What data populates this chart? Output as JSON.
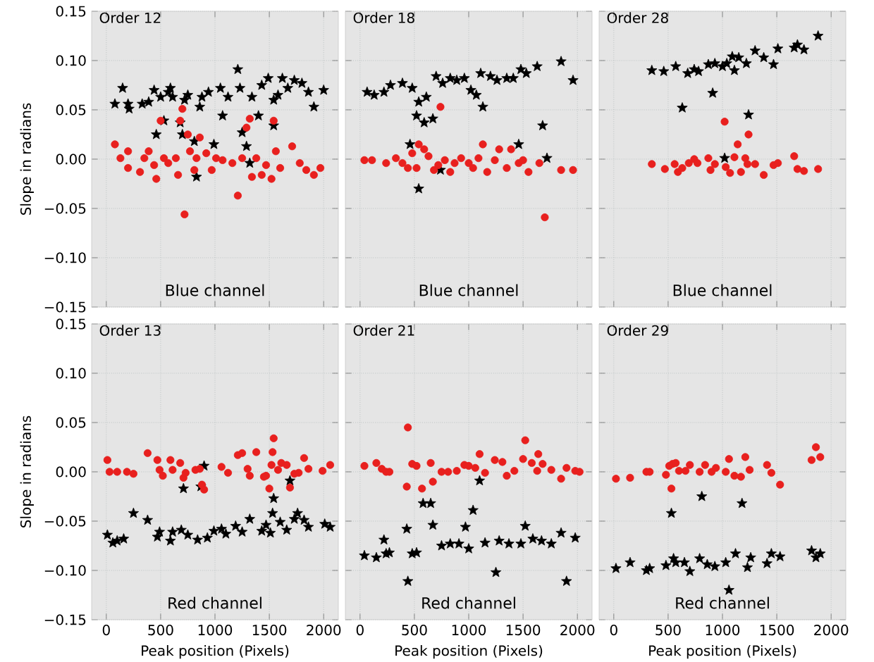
{
  "chart_data": [
    {
      "type": "scatter",
      "title": "Order 12",
      "ylabel": "Slope in radians",
      "annotations": [
        "Blue channel"
      ],
      "xlim": [
        -135,
        2135
      ],
      "xticks": [
        0,
        500,
        1000,
        1500,
        2000
      ],
      "ylim": [
        -0.15,
        0.15
      ],
      "yticks": [
        {
          "value": -0.15,
          "label": "−0.15"
        },
        {
          "value": -0.1,
          "label": "−0.10"
        },
        {
          "value": -0.05,
          "label": "−0.05"
        },
        {
          "value": 0,
          "label": "0.00"
        },
        {
          "value": 0.05,
          "label": "0.05"
        },
        {
          "value": 0.1,
          "label": "0.10"
        },
        {
          "value": 0.15,
          "label": "0.15"
        }
      ],
      "grid": true,
      "tick_labels": "y",
      "series": [
        {
          "color": "#000000",
          "marker": "star",
          "x": [
            79,
            150,
            200,
            210,
            330,
            390,
            440,
            460,
            500,
            530,
            570,
            590,
            610,
            680,
            700,
            720,
            750,
            810,
            830,
            860,
            880,
            940,
            990,
            1050,
            1070,
            1120,
            1210,
            1230,
            1250,
            1290,
            1320,
            1340,
            1400,
            1430,
            1490,
            1540,
            1540,
            1580,
            1620,
            1670,
            1730,
            1800,
            1860,
            1910,
            2000
          ],
          "values": [
            0.056,
            0.072,
            0.056,
            0.051,
            0.056,
            0.058,
            0.07,
            0.025,
            0.063,
            0.039,
            0.068,
            0.072,
            0.063,
            0.037,
            0.025,
            0.06,
            0.065,
            0.018,
            -0.018,
            0.053,
            0.063,
            0.068,
            0.015,
            0.072,
            0.044,
            0.063,
            0.091,
            0.072,
            0.027,
            0.013,
            -0.004,
            0.063,
            0.044,
            0.075,
            0.082,
            0.034,
            0.06,
            0.065,
            0.082,
            0.072,
            0.08,
            0.077,
            0.068,
            0.053,
            0.07
          ]
        },
        {
          "color": "#e8201e",
          "marker": "circle",
          "x": [
            79,
            130,
            200,
            200,
            310,
            350,
            390,
            440,
            460,
            500,
            530,
            570,
            640,
            660,
            680,
            700,
            720,
            750,
            770,
            810,
            830,
            860,
            920,
            970,
            1010,
            1070,
            1160,
            1210,
            1250,
            1290,
            1320,
            1340,
            1380,
            1430,
            1470,
            1520,
            1540,
            1560,
            1600,
            1710,
            1780,
            1840,
            1910,
            1970
          ],
          "values": [
            0.015,
            0.001,
            0.008,
            -0.009,
            -0.013,
            0.001,
            0.008,
            -0.006,
            -0.02,
            0.039,
            0.001,
            -0.004,
            0.001,
            -0.016,
            0.039,
            0.051,
            -0.056,
            0.025,
            0.008,
            -0.011,
            0.001,
            0.022,
            0.006,
            -0.011,
            0.001,
            -0.001,
            -0.004,
            -0.037,
            0.001,
            0.032,
            0.041,
            -0.018,
            0.001,
            -0.016,
            -0.006,
            -0.02,
            0.039,
            0.008,
            -0.009,
            0.013,
            -0.004,
            -0.011,
            -0.016,
            -0.009
          ]
        }
      ]
    },
    {
      "type": "scatter",
      "title": "Order 18",
      "annotations": [
        "Blue channel"
      ],
      "xlim": [
        -135,
        2135
      ],
      "xticks": [
        0,
        500,
        1000,
        1500,
        2000
      ],
      "ylim": [
        -0.15,
        0.15
      ],
      "yticks": [
        -0.15,
        -0.1,
        -0.05,
        0,
        0.05,
        0.1,
        0.15
      ],
      "grid": true,
      "tick_labels": false,
      "series": [
        {
          "color": "#000000",
          "marker": "star",
          "x": [
            65,
            130,
            220,
            280,
            390,
            480,
            460,
            520,
            540,
            590,
            610,
            670,
            700,
            760,
            830,
            890,
            960,
            1020,
            1070,
            1110,
            1130,
            1200,
            1260,
            1350,
            1410,
            1480,
            1530,
            740,
            540,
            1460,
            1630,
            1680,
            1720,
            1850,
            1960
          ],
          "values": [
            0.068,
            0.065,
            0.068,
            0.075,
            0.077,
            0.072,
            0.015,
            0.044,
            0.058,
            0.037,
            0.063,
            0.041,
            0.084,
            0.077,
            0.082,
            0.08,
            0.082,
            0.07,
            0.065,
            0.087,
            0.053,
            0.084,
            0.08,
            0.082,
            0.082,
            0.091,
            0.087,
            -0.011,
            -0.03,
            0.015,
            0.094,
            0.034,
            0.001,
            0.099,
            0.08
          ]
        },
        {
          "color": "#e8201e",
          "marker": "circle",
          "x": [
            40,
            110,
            240,
            330,
            390,
            440,
            480,
            520,
            540,
            590,
            630,
            680,
            720,
            740,
            780,
            830,
            870,
            930,
            1000,
            1040,
            1090,
            1130,
            1170,
            1240,
            1280,
            1350,
            1390,
            1460,
            1500,
            1550,
            1650,
            1700,
            1850,
            1960
          ],
          "values": [
            -0.001,
            -0.001,
            -0.004,
            0.001,
            -0.004,
            -0.009,
            0.006,
            -0.009,
            0.015,
            0.01,
            0.003,
            -0.011,
            -0.006,
            0.053,
            -0.001,
            -0.013,
            -0.004,
            0.001,
            -0.004,
            -0.009,
            0.001,
            0.015,
            -0.013,
            -0.001,
            0.01,
            -0.009,
            0.01,
            -0.004,
            -0.001,
            -0.013,
            -0.004,
            -0.059,
            -0.011,
            -0.011
          ]
        }
      ]
    },
    {
      "type": "scatter",
      "title": "Order 28",
      "annotations": [
        "Blue channel"
      ],
      "xlim": [
        -135,
        2135
      ],
      "xticks": [
        0,
        500,
        1000,
        1500,
        2000
      ],
      "ylim": [
        -0.15,
        0.15
      ],
      "yticks": [
        -0.15,
        -0.1,
        -0.05,
        0,
        0.05,
        0.1,
        0.15
      ],
      "grid": true,
      "tick_labels": false,
      "series": [
        {
          "color": "#000000",
          "marker": "star",
          "x": [
            350,
            460,
            570,
            630,
            680,
            740,
            780,
            870,
            910,
            930,
            1000,
            1020,
            1040,
            1090,
            1110,
            1150,
            1220,
            1240,
            1300,
            1380,
            1470,
            1510,
            1660,
            1690,
            1750,
            1880
          ],
          "values": [
            0.09,
            0.089,
            0.094,
            0.052,
            0.087,
            0.091,
            0.089,
            0.096,
            0.067,
            0.097,
            0.094,
            0.001,
            0.097,
            0.104,
            0.09,
            0.103,
            0.097,
            0.045,
            0.11,
            0.103,
            0.096,
            0.112,
            0.113,
            0.116,
            0.111,
            0.125
          ]
        },
        {
          "color": "#e8201e",
          "marker": "circle",
          "x": [
            350,
            470,
            560,
            590,
            630,
            690,
            740,
            770,
            870,
            890,
            930,
            1020,
            1030,
            1070,
            1110,
            1140,
            1170,
            1210,
            1230,
            1240,
            1300,
            1380,
            1470,
            1510,
            1660,
            1690,
            1750,
            1880
          ],
          "values": [
            -0.005,
            -0.01,
            -0.005,
            -0.013,
            -0.009,
            -0.004,
            0,
            -0.004,
            0.001,
            -0.011,
            -0.005,
            0.038,
            -0.008,
            -0.014,
            0.002,
            0.015,
            -0.013,
            0.001,
            -0.005,
            0.025,
            -0.005,
            -0.016,
            -0.006,
            -0.004,
            0.003,
            -0.01,
            -0.012,
            -0.01
          ]
        }
      ]
    },
    {
      "type": "scatter",
      "title": "Order 13",
      "xlabel": "Peak position (Pixels)",
      "ylabel": "Slope in radians",
      "annotations": [
        "Red channel"
      ],
      "xlim": [
        -135,
        2135
      ],
      "xticks": [
        0,
        500,
        1000,
        1500,
        2000
      ],
      "ylim": [
        -0.15,
        0.15
      ],
      "yticks": [
        {
          "value": -0.15,
          "label": "−0.15"
        },
        {
          "value": -0.1,
          "label": "−0.10"
        },
        {
          "value": -0.05,
          "label": "−0.05"
        },
        {
          "value": 0,
          "label": "0.00"
        },
        {
          "value": 0.05,
          "label": "0.05"
        },
        {
          "value": 0.1,
          "label": "0.10"
        },
        {
          "value": 0.15,
          "label": "0.15"
        }
      ],
      "grid": true,
      "series": [
        {
          "color": "#000000",
          "marker": "star",
          "x": [
            10,
            60,
            100,
            160,
            250,
            380,
            470,
            490,
            590,
            610,
            690,
            710,
            750,
            840,
            870,
            900,
            930,
            990,
            1060,
            1100,
            1190,
            1250,
            1320,
            1430,
            1470,
            1510,
            1530,
            1540,
            1600,
            1660,
            1690,
            1730,
            1760,
            1820,
            1860,
            2010,
            2060
          ],
          "values": [
            -0.064,
            -0.072,
            -0.07,
            -0.068,
            -0.042,
            -0.049,
            -0.066,
            -0.061,
            -0.07,
            -0.061,
            -0.059,
            -0.017,
            -0.064,
            -0.069,
            -0.015,
            0.006,
            -0.067,
            -0.06,
            -0.058,
            -0.063,
            -0.055,
            -0.061,
            -0.048,
            -0.06,
            -0.054,
            -0.062,
            -0.042,
            -0.027,
            -0.051,
            -0.059,
            -0.009,
            -0.048,
            -0.042,
            -0.049,
            -0.056,
            -0.053,
            -0.056
          ]
        },
        {
          "color": "#e8201e",
          "marker": "circle",
          "x": [
            10,
            30,
            100,
            190,
            250,
            380,
            470,
            490,
            520,
            590,
            610,
            680,
            710,
            730,
            820,
            860,
            880,
            900,
            1060,
            1120,
            1210,
            1250,
            1300,
            1320,
            1380,
            1450,
            1470,
            1500,
            1520,
            1530,
            1540,
            1580,
            1610,
            1660,
            1690,
            1730,
            1770,
            1820,
            1860,
            1990,
            2060
          ],
          "values": [
            0.012,
            0,
            0,
            0,
            -0.002,
            0.019,
            0.012,
            0.002,
            -0.004,
            0.012,
            0.002,
            0.009,
            -0.006,
            -0.001,
            0.002,
            0.003,
            -0.013,
            -0.018,
            0.005,
            -0.001,
            0.017,
            0.019,
            0.003,
            -0.004,
            0.02,
            -0.005,
            -0.004,
            -0.017,
            0.007,
            0.02,
            0.034,
            0.002,
            0.009,
            0.007,
            -0.016,
            -0.002,
            -0.001,
            0.014,
            0.003,
            0.001,
            0.007
          ]
        }
      ]
    },
    {
      "type": "scatter",
      "title": "Order 21",
      "xlabel": "Peak position (Pixels)",
      "annotations": [
        "Red channel"
      ],
      "xlim": [
        -135,
        2135
      ],
      "xticks": [
        0,
        500,
        1000,
        1500,
        2000
      ],
      "ylim": [
        -0.15,
        0.15
      ],
      "yticks": [
        -0.15,
        -0.1,
        -0.05,
        0,
        0.05,
        0.1,
        0.15
      ],
      "grid": true,
      "tick_labels": "x",
      "series": [
        {
          "color": "#000000",
          "marker": "star",
          "x": [
            40,
            150,
            220,
            240,
            270,
            430,
            440,
            480,
            520,
            580,
            650,
            670,
            750,
            830,
            910,
            970,
            1000,
            1040,
            1100,
            1150,
            1250,
            1280,
            1370,
            1480,
            1520,
            1590,
            1670,
            1760,
            1850,
            1900,
            1980
          ],
          "values": [
            -0.085,
            -0.087,
            -0.069,
            -0.083,
            -0.082,
            -0.058,
            -0.111,
            -0.083,
            -0.082,
            -0.032,
            -0.032,
            -0.054,
            -0.075,
            -0.073,
            -0.073,
            -0.056,
            -0.078,
            -0.039,
            -0.009,
            -0.072,
            -0.102,
            -0.07,
            -0.073,
            -0.073,
            -0.055,
            -0.068,
            -0.07,
            -0.073,
            -0.062,
            -0.111,
            -0.067
          ]
        },
        {
          "color": "#e8201e",
          "marker": "circle",
          "x": [
            40,
            150,
            200,
            240,
            270,
            430,
            440,
            480,
            520,
            570,
            650,
            670,
            750,
            810,
            890,
            960,
            1000,
            1060,
            1100,
            1150,
            1240,
            1310,
            1350,
            1420,
            1500,
            1520,
            1580,
            1630,
            1640,
            1680,
            1760,
            1850,
            1900,
            1980,
            2020
          ],
          "values": [
            0.006,
            0.009,
            0.003,
            0,
            0,
            -0.015,
            0.045,
            0.008,
            0.006,
            -0.017,
            0.009,
            -0.01,
            0,
            0,
            0.001,
            0.007,
            0.006,
            0.004,
            0.018,
            -0.001,
            0.012,
            0.01,
            -0.004,
            0.001,
            0.013,
            0.032,
            0.009,
            0.001,
            0.018,
            0.008,
            0.002,
            -0.007,
            0.004,
            0.001,
            0
          ]
        }
      ]
    },
    {
      "type": "scatter",
      "title": "Order 29",
      "xlabel": "Peak position (Pixels)",
      "annotations": [
        "Red channel"
      ],
      "xlim": [
        -135,
        2135
      ],
      "xticks": [
        0,
        500,
        1000,
        1500,
        2000
      ],
      "ylim": [
        -0.15,
        0.15
      ],
      "yticks": [
        -0.15,
        -0.1,
        -0.05,
        0,
        0.05,
        0.1,
        0.15
      ],
      "grid": true,
      "tick_labels": "x",
      "series": [
        {
          "color": "#000000",
          "marker": "star",
          "x": [
            20,
            150,
            300,
            330,
            480,
            530,
            550,
            570,
            650,
            700,
            790,
            810,
            860,
            930,
            1030,
            1060,
            1120,
            1180,
            1230,
            1260,
            1410,
            1450,
            1530,
            1820,
            1860,
            1900
          ],
          "values": [
            -0.098,
            -0.092,
            -0.1,
            -0.098,
            -0.095,
            -0.042,
            -0.088,
            -0.092,
            -0.092,
            -0.101,
            -0.088,
            -0.025,
            -0.094,
            -0.096,
            -0.092,
            -0.12,
            -0.083,
            -0.032,
            -0.097,
            -0.087,
            -0.093,
            -0.083,
            -0.086,
            -0.08,
            -0.087,
            -0.083
          ]
        },
        {
          "color": "#e8201e",
          "marker": "circle",
          "x": [
            20,
            150,
            300,
            330,
            480,
            510,
            530,
            540,
            570,
            600,
            660,
            700,
            790,
            840,
            900,
            940,
            1030,
            1060,
            1110,
            1170,
            1210,
            1250,
            1410,
            1450,
            1530,
            1820,
            1860,
            1900
          ],
          "values": [
            -0.007,
            -0.006,
            0,
            0,
            -0.003,
            0.006,
            -0.017,
            0.008,
            0.009,
            0.001,
            0.001,
            0.007,
            0,
            0.007,
            0,
            0.004,
            0,
            0.013,
            -0.004,
            -0.005,
            0.015,
            0.002,
            0.007,
            -0.001,
            -0.013,
            0.012,
            0.025,
            0.015
          ]
        }
      ]
    }
  ]
}
